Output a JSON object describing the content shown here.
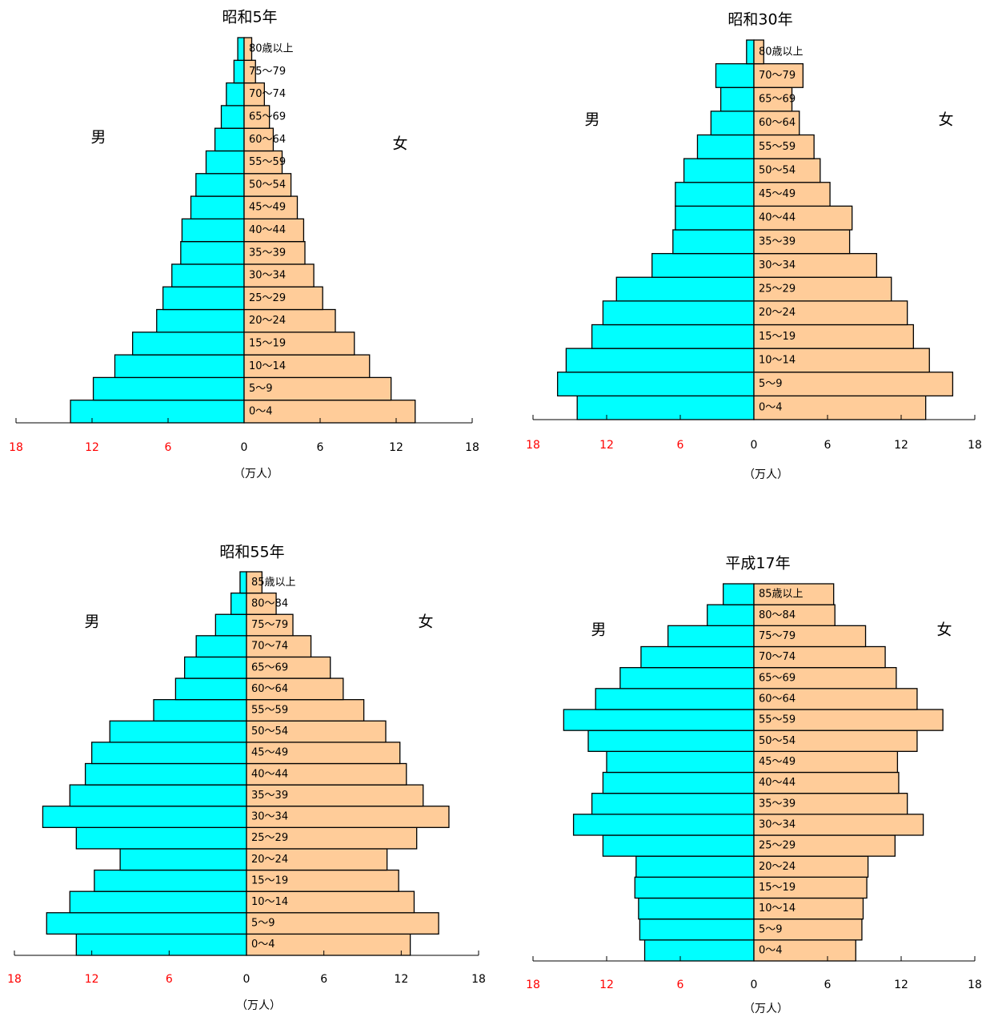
{
  "chart_data": [
    {
      "type": "pyramid",
      "title": "昭和5年",
      "x_label": "（万人）",
      "categories": [
        "0～4",
        "5～9",
        "10～14",
        "15～19",
        "20～24",
        "25～29",
        "30～34",
        "35～39",
        "40～44",
        "45～49",
        "50～54",
        "55～59",
        "60～64",
        "65～69",
        "70～74",
        "75～79",
        "80歳以上"
      ],
      "series": [
        {
          "name": "男",
          "color": "#00ffff",
          "values": [
            13.7,
            11.9,
            10.2,
            8.8,
            6.9,
            6.4,
            5.7,
            5.0,
            4.9,
            4.2,
            3.8,
            3.0,
            2.3,
            1.8,
            1.4,
            0.8,
            0.5
          ]
        },
        {
          "name": "女",
          "color": "#ffcc99",
          "values": [
            13.5,
            11.6,
            9.9,
            8.7,
            7.2,
            6.2,
            5.5,
            4.8,
            4.7,
            4.2,
            3.7,
            3.0,
            2.3,
            2.0,
            1.6,
            0.9,
            0.6
          ]
        }
      ],
      "xlim": [
        -18,
        18
      ],
      "xticks": [
        {
          "value": -18,
          "label": "18"
        },
        {
          "value": -12,
          "label": "12"
        },
        {
          "value": -6,
          "label": "6"
        },
        0,
        6,
        12,
        18
      ],
      "negative_tick_color": "#ff0000"
    },
    {
      "type": "pyramid",
      "title": "昭和30年",
      "x_label": "（万人）",
      "categories": [
        "0～4",
        "5～9",
        "10～14",
        "15～19",
        "20～24",
        "25～29",
        "30～34",
        "35～39",
        "40～44",
        "45～49",
        "50～54",
        "55～59",
        "60～64",
        "65～69",
        "70～79",
        "80歳以上"
      ],
      "series": [
        {
          "name": "男",
          "color": "#00ffff",
          "values": [
            14.4,
            16.0,
            15.3,
            13.2,
            12.3,
            11.2,
            8.3,
            6.6,
            6.4,
            6.4,
            5.7,
            4.6,
            3.5,
            2.7,
            3.1,
            0.6
          ]
        },
        {
          "name": "女",
          "color": "#ffcc99",
          "values": [
            14.0,
            16.2,
            14.3,
            13.0,
            12.5,
            11.2,
            10.0,
            7.8,
            8.0,
            6.2,
            5.4,
            4.9,
            3.7,
            3.1,
            4.0,
            0.8
          ]
        }
      ],
      "xlim": [
        -18,
        18
      ],
      "xticks": [
        {
          "value": -18,
          "label": "18"
        },
        {
          "value": -12,
          "label": "12"
        },
        {
          "value": -6,
          "label": "6"
        },
        0,
        6,
        12,
        18
      ],
      "negative_tick_color": "#ff0000"
    },
    {
      "type": "pyramid",
      "title": "昭和55年",
      "x_label": "（万人）",
      "categories": [
        "0～4",
        "5～9",
        "10～14",
        "15～19",
        "20～24",
        "25～29",
        "30～34",
        "35～39",
        "40～44",
        "45～49",
        "50～54",
        "55～59",
        "60～64",
        "65～69",
        "70～74",
        "75～79",
        "80～84",
        "85歳以上"
      ],
      "series": [
        {
          "name": "男",
          "color": "#00ffff",
          "values": [
            13.2,
            15.5,
            13.7,
            11.8,
            9.8,
            13.2,
            15.8,
            13.7,
            12.5,
            12.0,
            10.6,
            7.2,
            5.5,
            4.8,
            3.9,
            2.4,
            1.2,
            0.5
          ]
        },
        {
          "name": "女",
          "color": "#ffcc99",
          "values": [
            12.7,
            14.9,
            13.0,
            11.8,
            10.9,
            13.2,
            15.7,
            13.7,
            12.4,
            11.9,
            10.8,
            9.1,
            7.5,
            6.5,
            5.0,
            3.6,
            2.3,
            1.2
          ]
        }
      ],
      "xlim": [
        -18,
        18
      ],
      "xticks": [
        {
          "value": -18,
          "label": "18"
        },
        {
          "value": -12,
          "label": "12"
        },
        {
          "value": -6,
          "label": "6"
        },
        0,
        6,
        12,
        18
      ],
      "negative_tick_color": "#ff0000"
    },
    {
      "type": "pyramid",
      "title": "平成17年",
      "x_label": "（万人）",
      "categories": [
        "0～4",
        "5～9",
        "10～14",
        "15～19",
        "20～24",
        "25～29",
        "30～34",
        "35～39",
        "40～44",
        "45～49",
        "50～54",
        "55～59",
        "60～64",
        "65～69",
        "70～74",
        "75～79",
        "80～84",
        "85歳以上"
      ],
      "series": [
        {
          "name": "男",
          "color": "#00ffff",
          "values": [
            8.9,
            9.3,
            9.4,
            9.7,
            9.6,
            12.3,
            14.7,
            13.2,
            12.3,
            12.0,
            13.5,
            15.5,
            12.9,
            10.9,
            9.2,
            7.0,
            3.8,
            2.5
          ]
        },
        {
          "name": "女",
          "color": "#ffcc99",
          "values": [
            8.3,
            8.8,
            8.9,
            9.2,
            9.3,
            11.5,
            13.8,
            12.5,
            11.8,
            11.7,
            13.3,
            15.4,
            13.3,
            11.6,
            10.7,
            9.1,
            6.6,
            6.5
          ]
        }
      ],
      "xlim": [
        -18,
        18
      ],
      "xticks": [
        {
          "value": -18,
          "label": "18"
        },
        {
          "value": -12,
          "label": "12"
        },
        {
          "value": -6,
          "label": "6"
        },
        0,
        6,
        12,
        18
      ],
      "negative_tick_color": "#ff0000"
    }
  ]
}
